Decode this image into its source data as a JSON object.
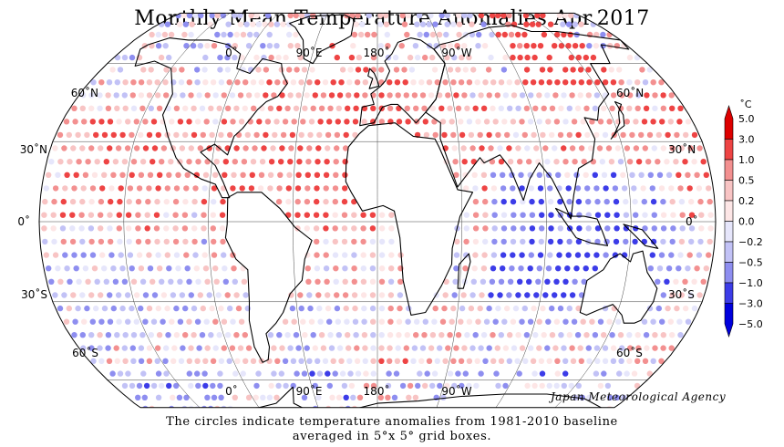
{
  "title": "Monthly Mean Temperature Anomalies Apr.2017",
  "caption_line1": "The circles indicate temperature anomalies from 1981-2010 baseline",
  "caption_line2": "averaged in 5°x 5° grid boxes.",
  "credit": "Japan Meteorological Agency",
  "map": {
    "projection": "Robinson",
    "center_longitude": 0,
    "lon_labels_top": [
      "0˚",
      "90˚E",
      "180˚",
      "90˚W"
    ],
    "lon_labels_bottom": [
      "0˚",
      "90˚E",
      "180˚",
      "90˚W"
    ],
    "lat_labels_left": [
      "60˚N",
      "30˚N",
      "0˚",
      "30˚S",
      "60˚S"
    ],
    "lat_labels_right": [
      "60˚N",
      "30˚N",
      "0˚",
      "30˚S",
      "60˚S"
    ]
  },
  "legend": {
    "unit": "˚C",
    "ticks": [
      "5.0",
      "3.0",
      "1.0",
      "0.5",
      "0.2",
      "0.0",
      "−0.2",
      "−0.5",
      "−1.0",
      "−3.0",
      "−5.0"
    ],
    "colors": [
      "#dd0000",
      "#ee4444",
      "#f39090",
      "#f8c4c4",
      "#fde6e6",
      "#e6e6fb",
      "#c2c2f6",
      "#8e8ef0",
      "#3c3ce8",
      "#0000dd"
    ]
  }
}
